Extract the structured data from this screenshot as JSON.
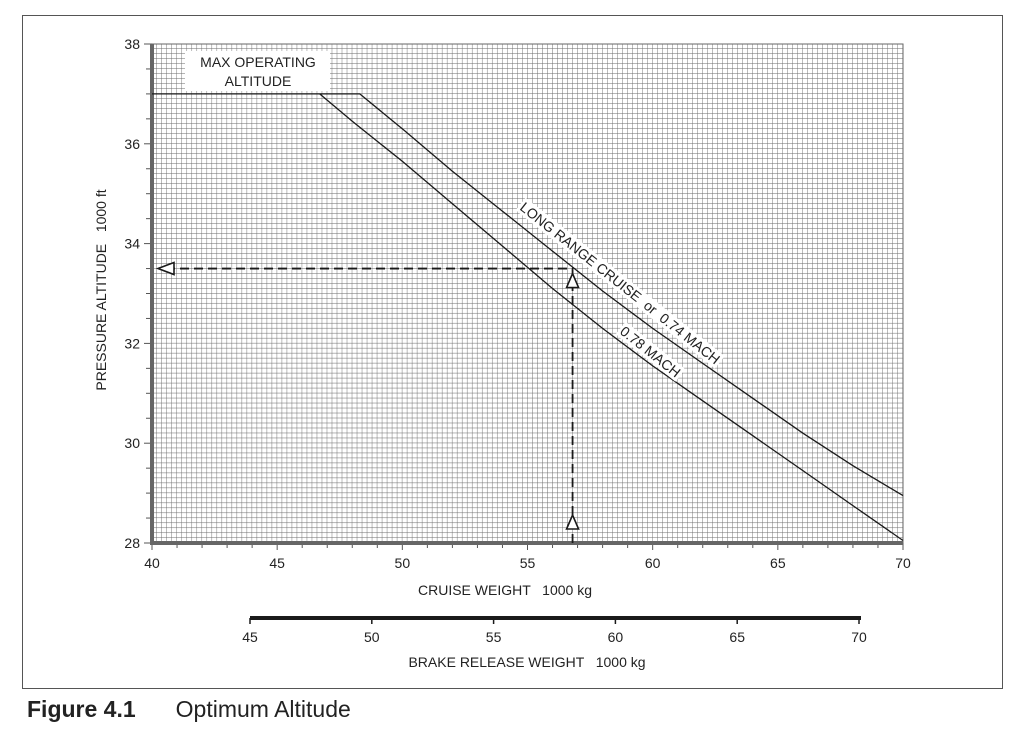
{
  "chart_data": {
    "type": "line",
    "xlabel": "CRUISE WEIGHT   1000 kg",
    "ylabel": "PRESSURE ALTITUDE   1000 ft",
    "xlim": [
      40,
      70
    ],
    "ylim": [
      28,
      38
    ],
    "x_ticks": [
      40,
      45,
      50,
      55,
      60,
      65,
      70
    ],
    "y_ticks": [
      28,
      30,
      32,
      34,
      36,
      38
    ],
    "grid": true,
    "secondary_x_axis": {
      "label": "BRAKE RELEASE WEIGHT   1000 kg",
      "ticks": [
        45,
        50,
        55,
        60,
        65,
        70
      ],
      "position": "bottom"
    },
    "series": [
      {
        "name": "LONG RANGE CRUISE  or  0.74 MACH",
        "x": [
          40,
          48.3,
          50,
          52,
          54,
          56,
          58,
          60,
          62,
          64,
          66,
          68,
          70
        ],
        "y": [
          37,
          37,
          36.3,
          35.45,
          34.65,
          33.85,
          33.05,
          32.3,
          31.6,
          30.9,
          30.2,
          29.55,
          28.95
        ]
      },
      {
        "name": "0.78 MACH",
        "x": [
          46.7,
          48,
          50,
          52,
          54,
          56,
          58,
          60,
          62,
          64,
          66,
          68,
          70
        ],
        "y": [
          37,
          36.45,
          35.65,
          34.8,
          33.95,
          33.1,
          32.3,
          31.55,
          30.85,
          30.15,
          29.45,
          28.75,
          28.05
        ]
      }
    ],
    "annotations": {
      "max_operating_altitude": "MAX OPERATING\nALTITUDE",
      "max_operating_altitude_line1": "MAX OPERATING",
      "max_operating_altitude_line2": "ALTITUDE",
      "max_operating_altitude_value": 37,
      "example_weight": 56.8,
      "example_altitude": 33.5
    }
  },
  "caption": {
    "number": "Figure 4.1",
    "title": "Optimum Altitude"
  }
}
